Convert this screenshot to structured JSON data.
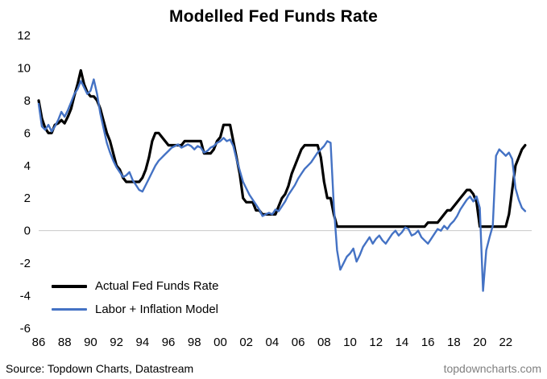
{
  "title": "Modelled Fed Funds Rate",
  "footer": {
    "source": "Source: Topdown Charts, Datastream",
    "site": "topdowncharts.com"
  },
  "legend": [
    {
      "label": "Actual Fed Funds Rate",
      "color": "#000000"
    },
    {
      "label": "Labor + Inflation Model",
      "color": "#4472C4"
    }
  ],
  "chart_data": {
    "type": "line",
    "title": "Modelled Fed Funds Rate",
    "xlabel": "",
    "ylabel": "",
    "xlim": [
      1986,
      2024
    ],
    "ylim": [
      -6,
      12
    ],
    "y_ticks": [
      12,
      10,
      8,
      6,
      4,
      2,
      0,
      -2,
      -4,
      -6
    ],
    "x_tick_years": [
      1986,
      1988,
      1990,
      1992,
      1994,
      1996,
      1998,
      2000,
      2002,
      2004,
      2006,
      2008,
      2010,
      2012,
      2014,
      2016,
      2018,
      2020,
      2022
    ],
    "x_tick_labels": [
      "86",
      "88",
      "90",
      "92",
      "94",
      "96",
      "98",
      "00",
      "02",
      "04",
      "06",
      "08",
      "10",
      "12",
      "14",
      "16",
      "18",
      "20",
      "22"
    ],
    "grid": "zero-line-only",
    "legend_position": "inside-lower-left",
    "x_start": 1986.0,
    "x_step": 0.25,
    "series": [
      {
        "name": "Actual Fed Funds Rate",
        "color": "#000000",
        "width": 3.2,
        "values": [
          8.0,
          6.9,
          6.3,
          6.0,
          6.0,
          6.5,
          6.6,
          6.8,
          6.6,
          7.0,
          7.5,
          8.3,
          9.0,
          9.85,
          9.0,
          8.5,
          8.25,
          8.25,
          8.0,
          7.5,
          6.75,
          6.0,
          5.5,
          4.75,
          4.0,
          3.75,
          3.25,
          3.0,
          3.0,
          3.0,
          3.0,
          3.0,
          3.25,
          3.75,
          4.5,
          5.5,
          6.0,
          6.0,
          5.75,
          5.5,
          5.25,
          5.25,
          5.25,
          5.25,
          5.25,
          5.5,
          5.5,
          5.5,
          5.5,
          5.5,
          5.5,
          4.75,
          4.75,
          4.75,
          5.0,
          5.5,
          5.75,
          6.5,
          6.5,
          6.5,
          5.5,
          4.5,
          3.5,
          2.0,
          1.75,
          1.75,
          1.75,
          1.25,
          1.25,
          1.0,
          1.0,
          1.0,
          1.0,
          1.0,
          1.5,
          2.0,
          2.25,
          2.75,
          3.5,
          4.0,
          4.5,
          5.0,
          5.25,
          5.25,
          5.25,
          5.25,
          5.25,
          4.5,
          3.0,
          2.0,
          2.0,
          1.0,
          0.25,
          0.25,
          0.25,
          0.25,
          0.25,
          0.25,
          0.25,
          0.25,
          0.25,
          0.25,
          0.25,
          0.25,
          0.25,
          0.25,
          0.25,
          0.25,
          0.25,
          0.25,
          0.25,
          0.25,
          0.25,
          0.25,
          0.25,
          0.25,
          0.25,
          0.25,
          0.25,
          0.25,
          0.5,
          0.5,
          0.5,
          0.5,
          0.75,
          1.0,
          1.25,
          1.25,
          1.5,
          1.75,
          2.0,
          2.25,
          2.5,
          2.5,
          2.25,
          1.75,
          0.25,
          0.25,
          0.25,
          0.25,
          0.25,
          0.25,
          0.25,
          0.25,
          0.25,
          1.0,
          2.5,
          4.0,
          4.5,
          5.0,
          5.25
        ]
      },
      {
        "name": "Labor + Inflation Model",
        "color": "#4472C4",
        "width": 2.4,
        "values": [
          7.8,
          6.4,
          6.2,
          6.5,
          6.1,
          6.4,
          6.8,
          7.3,
          7.0,
          7.4,
          7.9,
          8.4,
          8.7,
          9.2,
          8.8,
          8.4,
          8.6,
          9.3,
          8.4,
          7.2,
          6.3,
          5.4,
          4.8,
          4.3,
          3.9,
          3.6,
          3.3,
          3.4,
          3.6,
          3.1,
          2.8,
          2.5,
          2.4,
          2.8,
          3.2,
          3.6,
          4.0,
          4.3,
          4.5,
          4.7,
          4.9,
          5.1,
          5.2,
          5.3,
          5.1,
          5.2,
          5.3,
          5.2,
          5.0,
          5.2,
          5.1,
          4.8,
          4.9,
          5.1,
          5.2,
          5.4,
          5.5,
          5.7,
          5.5,
          5.6,
          5.2,
          4.4,
          3.7,
          3.0,
          2.6,
          2.2,
          1.9,
          1.6,
          1.3,
          0.9,
          1.0,
          1.1,
          1.0,
          1.3,
          1.2,
          1.5,
          1.8,
          2.2,
          2.5,
          2.8,
          3.2,
          3.5,
          3.8,
          4.0,
          4.2,
          4.5,
          4.8,
          5.0,
          5.2,
          5.5,
          5.4,
          1.5,
          -1.2,
          -2.4,
          -2.0,
          -1.6,
          -1.4,
          -1.1,
          -1.9,
          -1.5,
          -1.0,
          -0.7,
          -0.4,
          -0.8,
          -0.5,
          -0.3,
          -0.6,
          -0.8,
          -0.5,
          -0.2,
          0.0,
          -0.3,
          -0.1,
          0.2,
          0.1,
          -0.3,
          -0.2,
          0.0,
          -0.4,
          -0.6,
          -0.8,
          -0.5,
          -0.2,
          0.1,
          0.0,
          0.3,
          0.1,
          0.4,
          0.6,
          0.9,
          1.3,
          1.6,
          1.9,
          2.1,
          1.8,
          2.1,
          1.4,
          -3.7,
          -1.2,
          -0.4,
          0.3,
          4.6,
          5.0,
          4.8,
          4.6,
          4.8,
          4.4,
          2.6,
          1.9,
          1.4,
          1.2
        ]
      }
    ]
  }
}
